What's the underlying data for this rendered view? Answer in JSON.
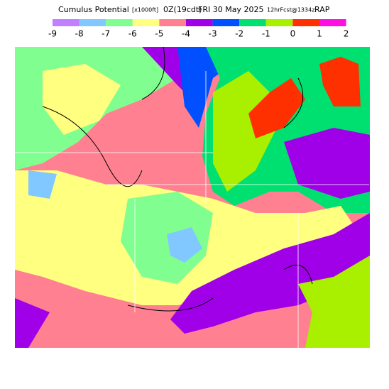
{
  "header": {
    "title_parts": [
      "Cumulus Potential",
      "[x1000ft]",
      "0Z(19cdt)",
      "FRI 30 May 2025",
      "12hrFcst@1334z",
      "RAP"
    ]
  },
  "legend": {
    "labels": [
      -9,
      -8,
      -7,
      -6,
      -5,
      -4,
      -3,
      -2,
      -1,
      0,
      1,
      2
    ],
    "colors": [
      "#c080ff",
      "#80c8ff",
      "#80ff90",
      "#ffff80",
      "#ff8090",
      "#a000e8",
      "#0050ff",
      "#00e070",
      "#a8f000",
      "#ff3000",
      "#ff10e0"
    ]
  }
}
